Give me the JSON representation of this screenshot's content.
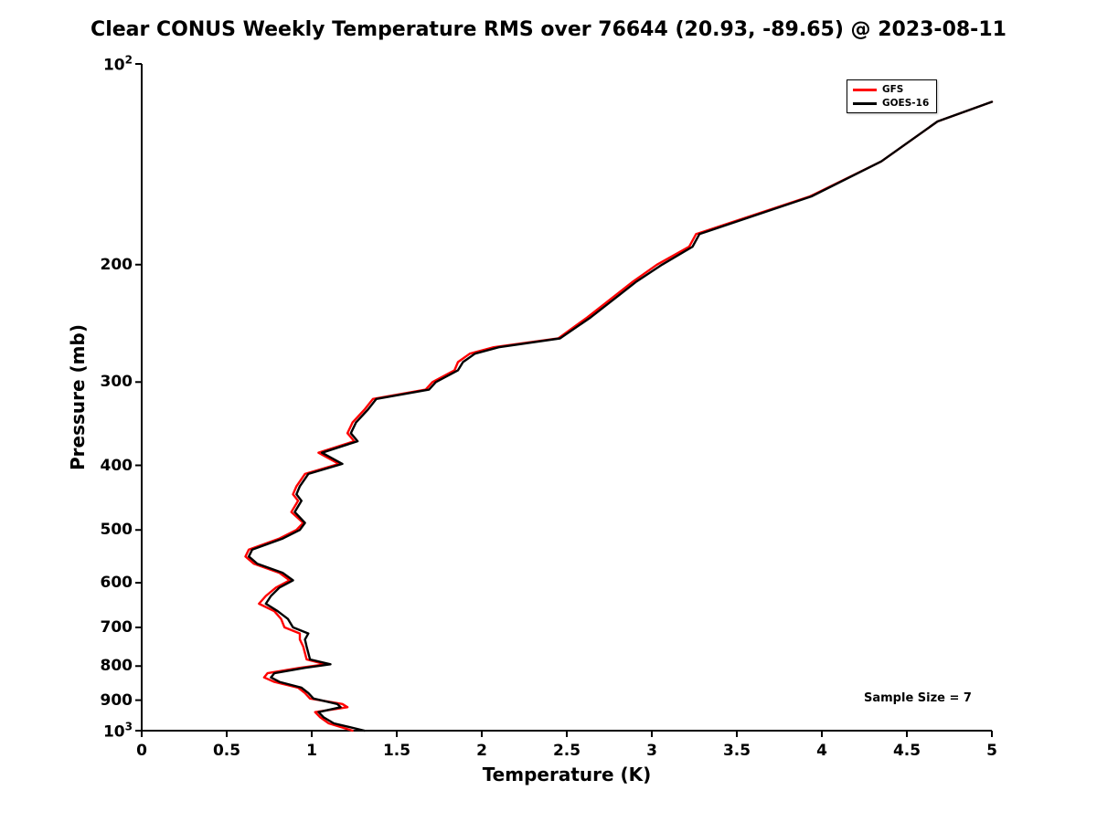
{
  "title": "Clear CONUS Weekly Temperature RMS over 76644 (20.93, -89.65) @ 2023-08-11",
  "legend": {
    "items": [
      {
        "label": "GFS",
        "color": "#ff0000"
      },
      {
        "label": "GOES-16",
        "color": "#000000"
      }
    ]
  },
  "chart_data": {
    "type": "line",
    "title": "Clear CONUS Weekly Temperature RMS over 76644 (20.93, -89.65) @ 2023-08-11",
    "xlabel": "Temperature (K)",
    "ylabel": "Pressure (mb)",
    "annotation": "Sample Size = 7",
    "xlim": [
      0,
      5
    ],
    "ylim": [
      100,
      1000
    ],
    "y_scale": "log",
    "y_inverted": true,
    "grid": false,
    "legend_position": "top-right",
    "axis_color": "#000000",
    "x_ticks": [
      0,
      0.5,
      1,
      1.5,
      2,
      2.5,
      3,
      3.5,
      4,
      4.5,
      5
    ],
    "x_tick_labels": [
      "0",
      "0.5",
      "1",
      "1.5",
      "2",
      "2.5",
      "3",
      "3.5",
      "4",
      "4.5",
      "5"
    ],
    "y_ticks": [
      100,
      200,
      300,
      400,
      500,
      600,
      700,
      800,
      900,
      1000
    ],
    "y_tick_labels": [
      "10^2",
      "200",
      "300",
      "400",
      "500",
      "600",
      "700",
      "800",
      "900",
      "10^3"
    ],
    "levels_mb": [
      114,
      122,
      140,
      158,
      180,
      188,
      200,
      212,
      222,
      240,
      258,
      266,
      272,
      280,
      288,
      300,
      308,
      318,
      330,
      345,
      358,
      368,
      383,
      398,
      412,
      430,
      442,
      452,
      470,
      488,
      500,
      515,
      535,
      548,
      562,
      580,
      595,
      610,
      628,
      645,
      662,
      680,
      700,
      715,
      730,
      748,
      765,
      782,
      795,
      805,
      820,
      832,
      845,
      862,
      878,
      895,
      912,
      922,
      938,
      955,
      975,
      1000
    ],
    "series": [
      {
        "name": "GFS",
        "color": "#ff0000",
        "rms_k": [
          5.0,
          4.68,
          4.35,
          3.93,
          3.26,
          3.22,
          3.03,
          2.89,
          2.79,
          2.62,
          2.45,
          2.07,
          1.93,
          1.86,
          1.84,
          1.71,
          1.67,
          1.36,
          1.31,
          1.24,
          1.21,
          1.25,
          1.04,
          1.16,
          0.96,
          0.91,
          0.89,
          0.92,
          0.88,
          0.95,
          0.91,
          0.81,
          0.63,
          0.61,
          0.66,
          0.81,
          0.87,
          0.79,
          0.73,
          0.69,
          0.78,
          0.82,
          0.84,
          0.93,
          0.93,
          0.95,
          0.96,
          0.97,
          1.08,
          0.93,
          0.74,
          0.72,
          0.78,
          0.92,
          0.96,
          0.99,
          1.18,
          1.21,
          1.02,
          1.05,
          1.1,
          1.24
        ]
      },
      {
        "name": "GOES-16",
        "color": "#000000",
        "rms_k": [
          5.0,
          4.68,
          4.35,
          3.94,
          3.28,
          3.24,
          3.06,
          2.91,
          2.81,
          2.64,
          2.46,
          2.1,
          1.96,
          1.89,
          1.86,
          1.73,
          1.69,
          1.38,
          1.33,
          1.26,
          1.23,
          1.27,
          1.06,
          1.18,
          0.98,
          0.93,
          0.91,
          0.94,
          0.9,
          0.96,
          0.93,
          0.83,
          0.65,
          0.63,
          0.68,
          0.83,
          0.89,
          0.81,
          0.76,
          0.73,
          0.8,
          0.86,
          0.89,
          0.98,
          0.96,
          0.97,
          0.98,
          0.99,
          1.11,
          0.96,
          0.78,
          0.76,
          0.81,
          0.94,
          0.98,
          1.01,
          1.15,
          1.17,
          1.04,
          1.07,
          1.13,
          1.31
        ]
      }
    ]
  }
}
